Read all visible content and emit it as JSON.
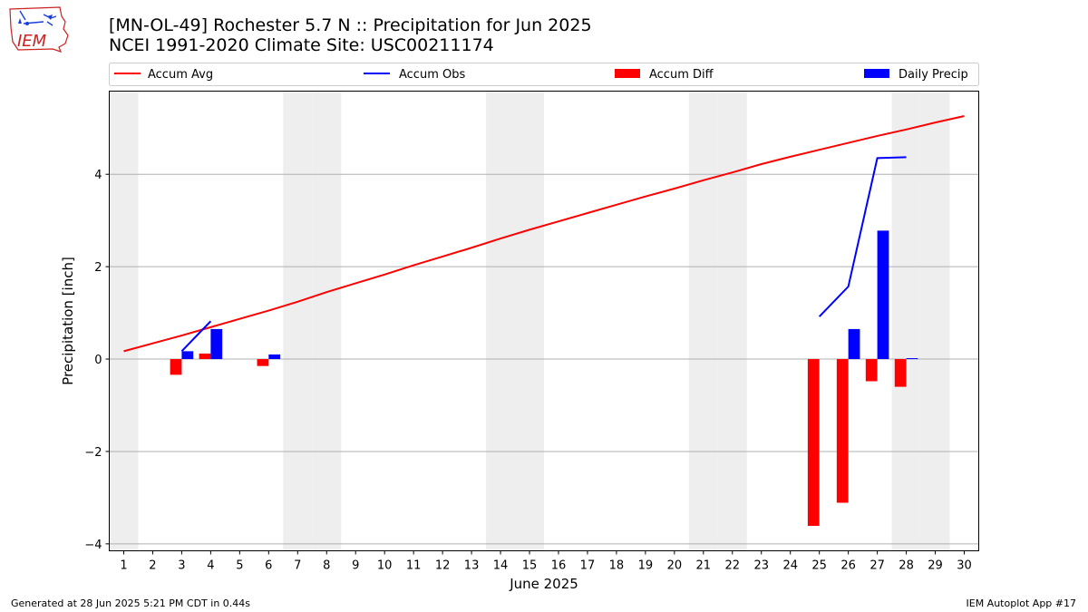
{
  "header": {
    "title": "[MN-OL-49] Rochester 5.7 N :: Precipitation for Jun 2025",
    "subtitle": "NCEI 1991-2020 Climate Site: USC00211174",
    "logo_text": "IEM"
  },
  "footer": {
    "generated": "Generated at 28 Jun 2025 5:21 PM CDT in 0.44s",
    "app": "IEM Autoplot App #17"
  },
  "colors": {
    "avg": "#ff0000",
    "obs": "#0000ff",
    "diff": "#ff0000",
    "precip": "#0000ff",
    "weekend": "#eeeeee",
    "grid": "#b0b0b0"
  },
  "chart_data": {
    "type": "bar",
    "xlabel": "June 2025",
    "ylabel": "Precipitation [inch]",
    "xlim": [
      0.5,
      30.5
    ],
    "ylim": [
      -4.15,
      5.8
    ],
    "yticks": [
      -4,
      -2,
      0,
      2,
      4
    ],
    "ytick_labels": [
      "−4",
      "−2",
      "0",
      "2",
      "4"
    ],
    "xticks": [
      1,
      2,
      3,
      4,
      5,
      6,
      7,
      8,
      9,
      10,
      11,
      12,
      13,
      14,
      15,
      16,
      17,
      18,
      19,
      20,
      21,
      22,
      23,
      24,
      25,
      26,
      27,
      28,
      29,
      30
    ],
    "grid": "horizontal",
    "legend_position": "top",
    "weekend_days": [
      1,
      7,
      8,
      14,
      15,
      21,
      22,
      28,
      29
    ],
    "legend": [
      "Accum Avg",
      "Accum Obs",
      "Accum Diff",
      "Daily Precip"
    ],
    "series": [
      {
        "name": "Accum Avg",
        "kind": "line",
        "x": [
          1,
          2,
          3,
          4,
          5,
          6,
          7,
          8,
          9,
          10,
          11,
          12,
          13,
          14,
          15,
          16,
          17,
          18,
          19,
          20,
          21,
          22,
          23,
          24,
          25,
          26,
          27,
          28,
          29,
          30
        ],
        "values": [
          0.17,
          0.34,
          0.51,
          0.69,
          0.87,
          1.05,
          1.24,
          1.45,
          1.64,
          1.83,
          2.03,
          2.22,
          2.41,
          2.61,
          2.8,
          2.98,
          3.16,
          3.34,
          3.52,
          3.69,
          3.87,
          4.04,
          4.22,
          4.38,
          4.53,
          4.68,
          4.83,
          4.97,
          5.12,
          5.26
        ]
      },
      {
        "name": "Accum Obs",
        "kind": "line",
        "segments": [
          {
            "x": [
              3,
              4
            ],
            "values": [
              0.17,
              0.82
            ]
          },
          {
            "x": [
              25,
              26,
              27,
              28
            ],
            "values": [
              0.92,
              1.57,
              4.35,
              4.37
            ]
          }
        ]
      },
      {
        "name": "Accum Diff",
        "kind": "bar",
        "x": [
          3,
          4,
          6,
          25,
          26,
          27,
          28
        ],
        "values": [
          -0.34,
          0.12,
          -0.15,
          -3.61,
          -3.11,
          -0.48,
          -0.6
        ]
      },
      {
        "name": "Daily Precip",
        "kind": "bar",
        "x": [
          3,
          4,
          6,
          26,
          27,
          28
        ],
        "values": [
          0.17,
          0.65,
          0.1,
          0.65,
          2.78,
          0.02
        ]
      }
    ]
  }
}
